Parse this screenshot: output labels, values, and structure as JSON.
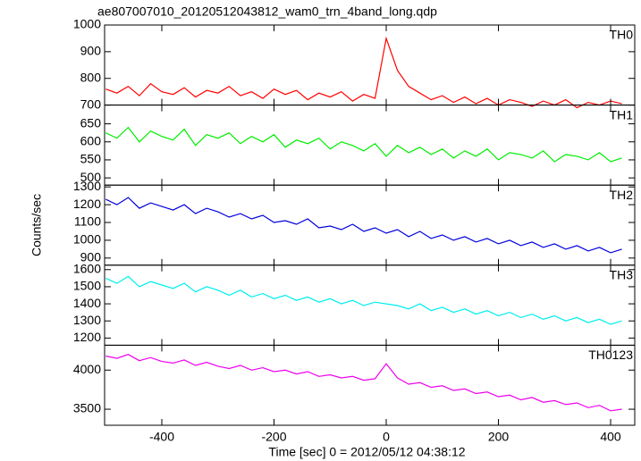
{
  "chart_data": [
    {
      "type": "line",
      "title": "ae807007010_20120512043812_wam0_trn_4band_long.qdp",
      "label": "TH0",
      "color": "#ff0000",
      "x": [
        -500,
        -480,
        -460,
        -440,
        -420,
        -400,
        -380,
        -360,
        -340,
        -320,
        -300,
        -280,
        -260,
        -240,
        -220,
        -200,
        -180,
        -160,
        -140,
        -120,
        -100,
        -80,
        -60,
        -40,
        -20,
        0,
        20,
        40,
        60,
        80,
        100,
        120,
        140,
        160,
        180,
        200,
        220,
        240,
        260,
        280,
        300,
        320,
        340,
        360,
        380,
        400,
        420
      ],
      "values": [
        760,
        745,
        770,
        735,
        780,
        750,
        740,
        765,
        730,
        755,
        745,
        770,
        735,
        750,
        725,
        760,
        740,
        755,
        720,
        745,
        730,
        750,
        715,
        740,
        725,
        950,
        830,
        770,
        745,
        720,
        735,
        710,
        730,
        705,
        725,
        700,
        720,
        710,
        695,
        715,
        700,
        720,
        690,
        710,
        700,
        715,
        705
      ],
      "xlim": [
        -502,
        443
      ],
      "ylim": [
        700,
        1000
      ],
      "yticks": [
        700,
        800,
        900,
        1000
      ]
    },
    {
      "type": "line",
      "label": "TH1",
      "color": "#00ee00",
      "x": [
        -500,
        -480,
        -460,
        -440,
        -420,
        -400,
        -380,
        -360,
        -340,
        -320,
        -300,
        -280,
        -260,
        -240,
        -220,
        -200,
        -180,
        -160,
        -140,
        -120,
        -100,
        -80,
        -60,
        -40,
        -20,
        0,
        20,
        40,
        60,
        80,
        100,
        120,
        140,
        160,
        180,
        200,
        220,
        240,
        260,
        280,
        300,
        320,
        340,
        360,
        380,
        400,
        420
      ],
      "values": [
        625,
        610,
        640,
        600,
        630,
        615,
        605,
        635,
        590,
        620,
        610,
        625,
        595,
        615,
        600,
        620,
        585,
        605,
        595,
        610,
        580,
        600,
        590,
        575,
        595,
        560,
        590,
        570,
        585,
        565,
        580,
        555,
        575,
        560,
        580,
        550,
        570,
        565,
        555,
        575,
        545,
        565,
        560,
        550,
        570,
        545,
        555
      ],
      "xlim": [
        -502,
        443
      ],
      "ylim": [
        480,
        702
      ],
      "yticks": [
        500,
        550,
        600,
        650
      ]
    },
    {
      "type": "line",
      "label": "TH2",
      "color": "#0000dd",
      "ylabel": "Counts/sec",
      "x": [
        -500,
        -480,
        -460,
        -440,
        -420,
        -400,
        -380,
        -360,
        -340,
        -320,
        -300,
        -280,
        -260,
        -240,
        -220,
        -200,
        -180,
        -160,
        -140,
        -120,
        -100,
        -80,
        -60,
        -40,
        -20,
        0,
        20,
        40,
        60,
        80,
        100,
        120,
        140,
        160,
        180,
        200,
        220,
        240,
        260,
        280,
        300,
        320,
        340,
        360,
        380,
        400,
        420
      ],
      "values": [
        1230,
        1200,
        1240,
        1180,
        1210,
        1190,
        1170,
        1200,
        1150,
        1180,
        1160,
        1130,
        1150,
        1120,
        1140,
        1100,
        1110,
        1090,
        1120,
        1070,
        1080,
        1060,
        1090,
        1050,
        1070,
        1040,
        1060,
        1020,
        1050,
        1010,
        1030,
        1000,
        1020,
        990,
        1010,
        980,
        1000,
        970,
        990,
        960,
        980,
        950,
        970,
        940,
        960,
        930,
        950
      ],
      "xlim": [
        -502,
        443
      ],
      "ylim": [
        860,
        1310
      ],
      "yticks": [
        900,
        1000,
        1100,
        1200,
        1300
      ]
    },
    {
      "type": "line",
      "label": "TH3",
      "color": "#00eeee",
      "x": [
        -500,
        -480,
        -460,
        -440,
        -420,
        -400,
        -380,
        -360,
        -340,
        -320,
        -300,
        -280,
        -260,
        -240,
        -220,
        -200,
        -180,
        -160,
        -140,
        -120,
        -100,
        -80,
        -60,
        -40,
        -20,
        0,
        20,
        40,
        60,
        80,
        100,
        120,
        140,
        160,
        180,
        200,
        220,
        240,
        260,
        280,
        300,
        320,
        340,
        360,
        380,
        400,
        420
      ],
      "values": [
        1550,
        1520,
        1560,
        1500,
        1530,
        1510,
        1490,
        1520,
        1470,
        1500,
        1480,
        1450,
        1480,
        1440,
        1460,
        1430,
        1450,
        1420,
        1440,
        1410,
        1430,
        1400,
        1420,
        1390,
        1410,
        1400,
        1390,
        1370,
        1400,
        1360,
        1380,
        1350,
        1370,
        1340,
        1360,
        1330,
        1350,
        1320,
        1340,
        1310,
        1330,
        1300,
        1320,
        1290,
        1310,
        1280,
        1300
      ],
      "xlim": [
        -502,
        443
      ],
      "ylim": [
        1158,
        1626
      ],
      "yticks": [
        1200,
        1300,
        1400,
        1500,
        1600
      ]
    },
    {
      "type": "line",
      "label": "TH0123",
      "color": "#ee00ee",
      "xlabel": "Time [sec] 0 = 2012/05/12 04:38:12",
      "x": [
        -500,
        -480,
        -460,
        -440,
        -420,
        -400,
        -380,
        -360,
        -340,
        -320,
        -300,
        -280,
        -260,
        -240,
        -220,
        -200,
        -180,
        -160,
        -140,
        -120,
        -100,
        -80,
        -60,
        -40,
        -20,
        0,
        20,
        40,
        60,
        80,
        100,
        120,
        140,
        160,
        180,
        200,
        220,
        240,
        260,
        280,
        300,
        320,
        340,
        360,
        380,
        400,
        420
      ],
      "values": [
        4180,
        4150,
        4200,
        4120,
        4160,
        4110,
        4090,
        4130,
        4060,
        4100,
        4050,
        4020,
        4060,
        4000,
        4030,
        3980,
        4000,
        3950,
        3980,
        3920,
        3940,
        3900,
        3920,
        3870,
        3890,
        4080,
        3900,
        3820,
        3840,
        3780,
        3800,
        3740,
        3760,
        3700,
        3720,
        3660,
        3680,
        3620,
        3650,
        3590,
        3610,
        3560,
        3580,
        3520,
        3550,
        3480,
        3500
      ],
      "xlim": [
        -502,
        443
      ],
      "ylim": [
        3295,
        4318
      ],
      "yticks": [
        3500,
        4000
      ],
      "xticks": [
        -400,
        -200,
        0,
        200,
        400
      ]
    }
  ]
}
